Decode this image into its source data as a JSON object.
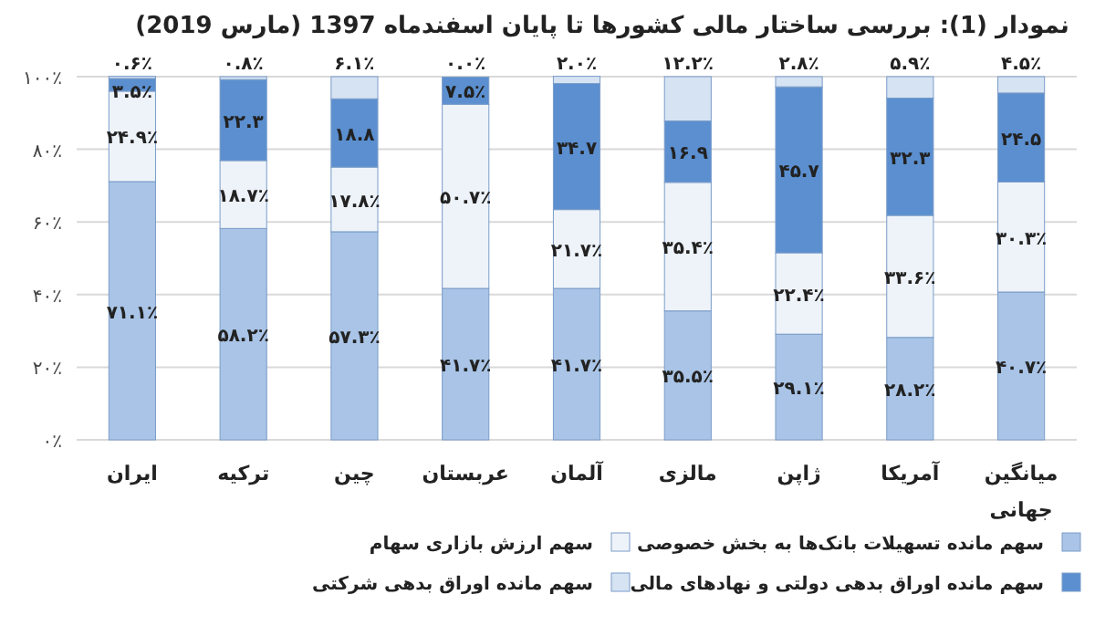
{
  "chart_data": {
    "type": "bar",
    "stacked": true,
    "title": "نمودار (1): بررسی ساختار مالی کشورها تا پایان اسفندماه 1397 (مارس 2019)",
    "categories": [
      "ایران",
      "ترکیه",
      "چین",
      "عربستان",
      "آلمان",
      "مالزی",
      "ژاپن",
      "آمریکا",
      "میانگین جهانی"
    ],
    "ylim": [
      0,
      100
    ],
    "yticks": [
      {
        "value": 0,
        "label": "۰٪"
      },
      {
        "value": 20,
        "label": "۲۰٪"
      },
      {
        "value": 40,
        "label": "۴۰٪"
      },
      {
        "value": 60,
        "label": "۶۰٪"
      },
      {
        "value": 80,
        "label": "۸۰٪"
      },
      {
        "value": 100,
        "label": "۱۰۰٪"
      }
    ],
    "grid": "y",
    "legend": "bottom",
    "series": [
      {
        "name": "سهم مانده تسهیلات بانک‌ها به بخش خصوصی",
        "color": "#a9c4e6",
        "values": [
          71.1,
          58.2,
          57.3,
          41.7,
          41.7,
          35.5,
          29.1,
          28.2,
          40.7
        ],
        "value_labels": [
          "۷۱.۱٪",
          "۵۸.۲٪",
          "۵۷.۳٪",
          "۴۱.۷٪",
          "۴۱.۷٪",
          "۳۵.۵٪",
          "۲۹.۱٪",
          "۲۸.۲٪",
          "۴۰.۷٪"
        ]
      },
      {
        "name": "سهم ارزش بازاری سهام",
        "color": "#eef3f9",
        "values": [
          24.9,
          18.7,
          17.8,
          50.7,
          21.7,
          35.4,
          22.4,
          33.6,
          30.3
        ],
        "value_labels": [
          "۲۴.۹٪",
          "۱۸.۷٪",
          "۱۷.۸٪",
          "۵۰.۷٪",
          "۲۱.۷٪",
          "۳۵.۴٪",
          "۲۲.۴٪",
          "۳۳.۶٪",
          "۳۰.۳٪"
        ]
      },
      {
        "name": "سهم مانده اوراق بدهی دولتی و نهادهای مالی",
        "color": "#5b8fd0",
        "values": [
          3.5,
          22.3,
          18.8,
          7.5,
          34.7,
          16.9,
          45.7,
          32.3,
          24.5
        ],
        "value_labels": [
          "۳.۵٪",
          "۲۲.۳",
          "۱۸.۸",
          "۷.۵٪",
          "۳۴.۷",
          "۱۶.۹",
          "۴۵.۷",
          "۳۲.۳",
          "۲۴.۵"
        ]
      },
      {
        "name": "سهم مانده اوراق بدهی شرکتی",
        "color": "#d6e3f3",
        "values": [
          0.6,
          0.8,
          6.1,
          0.0,
          2.0,
          12.2,
          2.8,
          5.9,
          4.5
        ],
        "value_labels": [
          "۰.۶٪",
          "۰.۸٪",
          "۶.۱٪",
          "۰.۰٪",
          "۲.۰٪",
          "۱۲.۲٪",
          "۲.۸٪",
          "۵.۹٪",
          "۴.۵٪"
        ]
      }
    ]
  }
}
